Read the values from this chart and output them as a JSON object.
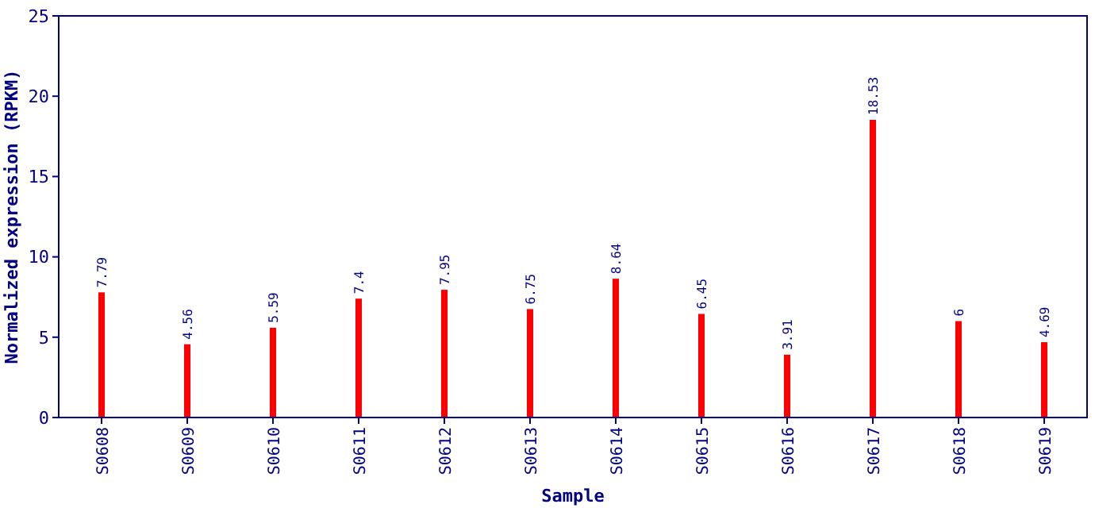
{
  "chart_data": {
    "type": "bar",
    "xlabel": "Sample",
    "ylabel": "Normalized expression (RPKM)",
    "categories": [
      "S0608",
      "S0609",
      "S0610",
      "S0611",
      "S0612",
      "S0613",
      "S0614",
      "S0615",
      "S0616",
      "S0617",
      "S0618",
      "S0619"
    ],
    "values": [
      7.79,
      4.56,
      5.59,
      7.4,
      7.95,
      6.75,
      8.64,
      6.45,
      3.91,
      18.53,
      6,
      4.69
    ],
    "value_labels": [
      "7.79",
      "4.56",
      "5.59",
      "7.4",
      "7.95",
      "6.75",
      "8.64",
      "6.45",
      "3.91",
      "18.53",
      "6",
      "4.69"
    ],
    "color": "#ff0000",
    "ylim": [
      0,
      25
    ],
    "yticks": [
      0,
      5,
      10,
      15,
      20,
      25
    ],
    "grid": false
  }
}
